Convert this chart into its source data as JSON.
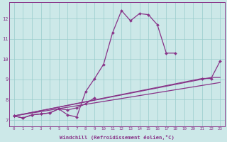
{
  "bg_color": "#cce8e8",
  "line_color": "#883388",
  "grid_color": "#99cccc",
  "xlabel": "Windchill (Refroidissement éolien,°C)",
  "yticks": [
    7,
    8,
    9,
    10,
    11,
    12
  ],
  "xlim": [
    -0.5,
    23.5
  ],
  "ylim": [
    6.7,
    12.8
  ],
  "lines": [
    {
      "x": [
        0,
        1,
        2,
        3,
        4,
        5,
        6,
        7,
        8,
        9,
        10,
        11,
        12,
        13,
        14,
        15,
        16,
        17,
        18
      ],
      "y": [
        7.2,
        7.1,
        7.25,
        7.3,
        7.35,
        7.55,
        7.25,
        7.15,
        8.4,
        9.05,
        9.75,
        11.3,
        12.4,
        11.9,
        12.25,
        12.2,
        11.7,
        10.3,
        10.3
      ],
      "markers": true
    },
    {
      "x": [
        0,
        1,
        2,
        3,
        4,
        5,
        6,
        7,
        8,
        9
      ],
      "y": [
        7.2,
        7.1,
        7.25,
        7.3,
        7.35,
        7.55,
        7.5,
        7.6,
        7.8,
        8.1
      ],
      "markers": true
    },
    {
      "x": [
        0,
        21,
        22,
        23
      ],
      "y": [
        7.2,
        9.05,
        9.05,
        9.9
      ],
      "markers": true
    },
    {
      "x": [
        0,
        22,
        23
      ],
      "y": [
        7.2,
        9.1,
        9.1
      ],
      "markers": false
    },
    {
      "x": [
        0,
        23
      ],
      "y": [
        7.2,
        8.85
      ],
      "markers": false
    }
  ]
}
